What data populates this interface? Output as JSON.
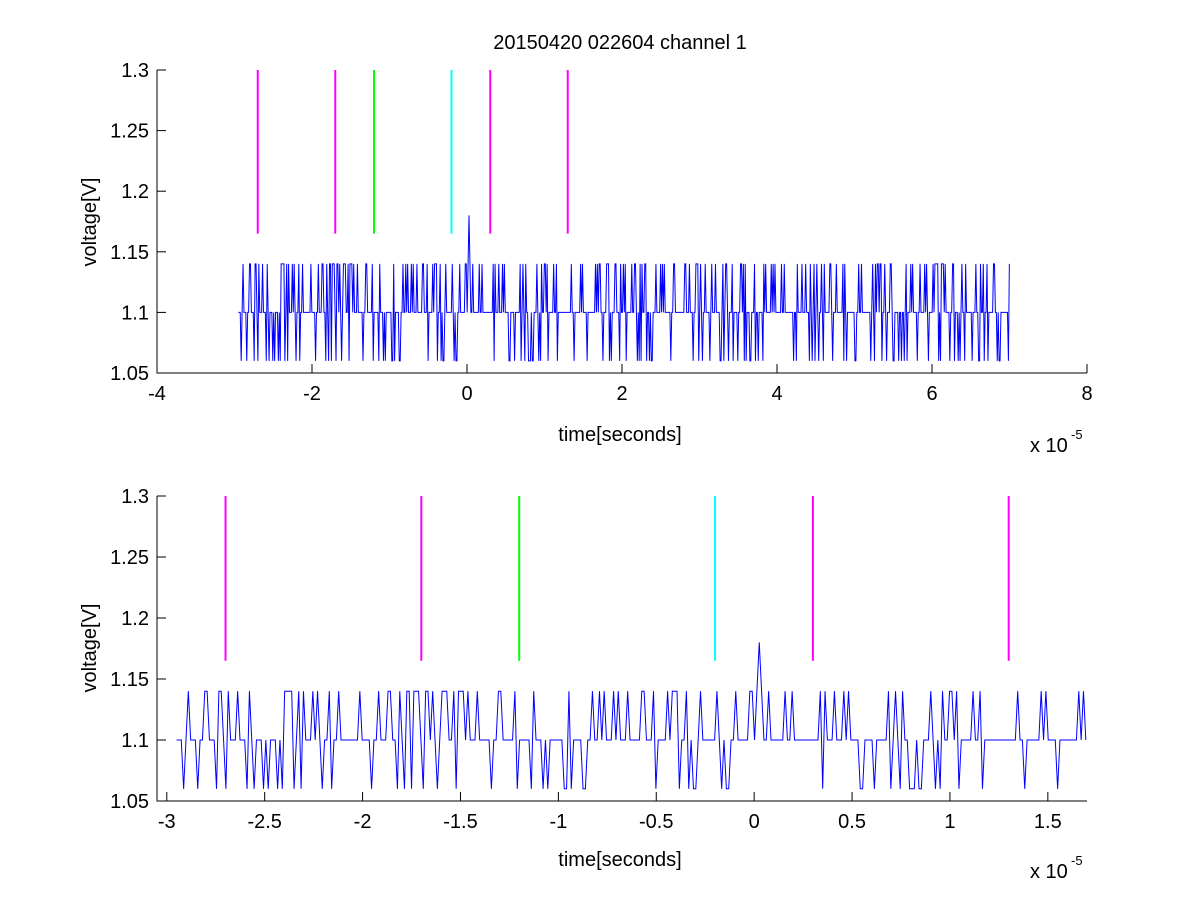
{
  "figure_title": "20150420 022604 channel 1",
  "chart_data": [
    {
      "type": "line",
      "title": "20150420 022604 channel 1",
      "xlabel": "time[seconds]",
      "ylabel": "voltage[V]",
      "x_exponent_label": "x 10",
      "x_exponent": "-5",
      "xlim": [
        -4,
        8
      ],
      "ylim": [
        1.05,
        1.3
      ],
      "xticks": [
        -4,
        -2,
        0,
        2,
        4,
        6,
        8
      ],
      "xtick_labels": [
        "-4",
        "-2",
        "0",
        "2",
        "4",
        "6",
        "8"
      ],
      "yticks": [
        1.05,
        1.1,
        1.15,
        1.2,
        1.25,
        1.3
      ],
      "ytick_labels": [
        "1.05",
        "1.1",
        "1.15",
        "1.2",
        "1.25",
        "1.3"
      ],
      "grid": false,
      "signal": {
        "color": "#0000ff",
        "x_start": -2.95,
        "x_end": 7.0,
        "baseline": 1.1,
        "levels": [
          1.06,
          1.1,
          1.14
        ],
        "spike": {
          "x": 0.03,
          "y": 1.18
        }
      },
      "markers": [
        {
          "x": -2.7,
          "color": "#ff00ff",
          "y_range": [
            1.165,
            1.3
          ]
        },
        {
          "x": -1.7,
          "color": "#ff00ff",
          "y_range": [
            1.165,
            1.3
          ]
        },
        {
          "x": -1.2,
          "color": "#00ff00",
          "y_range": [
            1.165,
            1.3
          ]
        },
        {
          "x": -0.2,
          "color": "#00ffff",
          "y_range": [
            1.165,
            1.3
          ]
        },
        {
          "x": 0.3,
          "color": "#ff00ff",
          "y_range": [
            1.165,
            1.3
          ]
        },
        {
          "x": 1.3,
          "color": "#ff00ff",
          "y_range": [
            1.165,
            1.3
          ]
        }
      ]
    },
    {
      "type": "line",
      "title": "",
      "xlabel": "time[seconds]",
      "ylabel": "voltage[V]",
      "x_exponent_label": "x 10",
      "x_exponent": "-5",
      "xlim": [
        -3.05,
        1.7
      ],
      "ylim": [
        1.05,
        1.3
      ],
      "xticks": [
        -3,
        -2.5,
        -2,
        -1.5,
        -1,
        -0.5,
        0,
        0.5,
        1,
        1.5
      ],
      "xtick_labels": [
        "-3",
        "-2.5",
        "-2",
        "-1.5",
        "-1",
        "-0.5",
        "0",
        "0.5",
        "1",
        "1.5"
      ],
      "yticks": [
        1.05,
        1.1,
        1.15,
        1.2,
        1.25,
        1.3
      ],
      "ytick_labels": [
        "1.05",
        "1.1",
        "1.15",
        "1.2",
        "1.25",
        "1.3"
      ],
      "grid": false,
      "signal": {
        "color": "#0000ff",
        "x_start": -2.95,
        "x_end": 1.7,
        "baseline": 1.1,
        "levels": [
          1.06,
          1.1,
          1.14
        ],
        "spike": {
          "x": 0.03,
          "y": 1.18
        }
      },
      "markers": [
        {
          "x": -2.7,
          "color": "#ff00ff",
          "y_range": [
            1.165,
            1.3
          ]
        },
        {
          "x": -1.7,
          "color": "#ff00ff",
          "y_range": [
            1.165,
            1.3
          ]
        },
        {
          "x": -1.2,
          "color": "#00ff00",
          "y_range": [
            1.165,
            1.3
          ]
        },
        {
          "x": -0.2,
          "color": "#00ffff",
          "y_range": [
            1.165,
            1.3
          ]
        },
        {
          "x": 0.3,
          "color": "#ff00ff",
          "y_range": [
            1.165,
            1.3
          ]
        },
        {
          "x": 1.3,
          "color": "#ff00ff",
          "y_range": [
            1.165,
            1.3
          ]
        }
      ]
    }
  ]
}
